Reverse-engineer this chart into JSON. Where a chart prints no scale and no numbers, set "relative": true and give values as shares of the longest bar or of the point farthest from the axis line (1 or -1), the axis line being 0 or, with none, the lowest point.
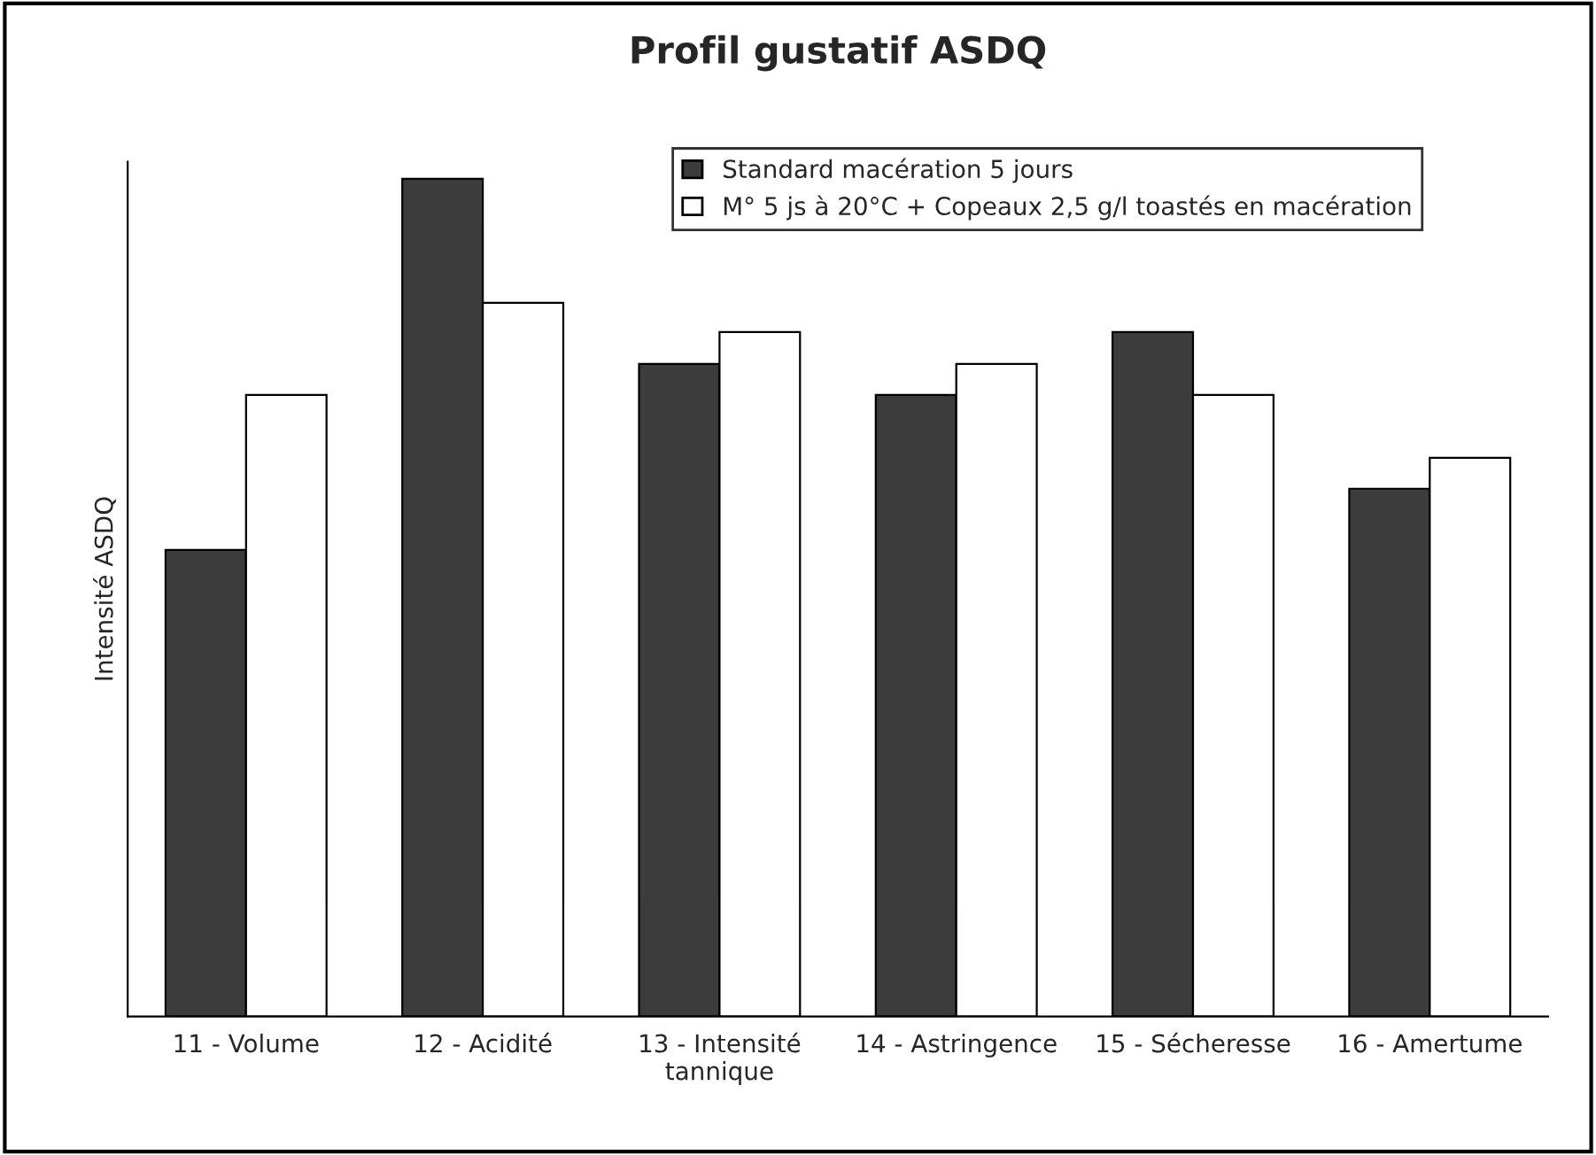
{
  "chart_data": {
    "type": "bar",
    "title": "Profil gustatif ASDQ",
    "ylabel": "Intensité ASDQ",
    "relative": true,
    "categories": [
      "11 - Volume",
      "12 - Acidité",
      "13 - Intensité\ntannique",
      "14 - Astringence",
      "15 - Sécheresse",
      "16 - Amertume"
    ],
    "series": [
      {
        "name": "Standard macération 5 jours",
        "color": "#3c3c3c",
        "values": [
          0.557,
          1,
          0.779,
          0.742,
          0.817,
          0.63
        ]
      },
      {
        "name": "M° 5 js à 20°C + Copeaux 2,5 g/l toastés en macération",
        "color": "#ffffff",
        "values": [
          0.742,
          0.852,
          0.817,
          0.779,
          0.742,
          0.667
        ]
      }
    ],
    "legend": "top right",
    "grid": false
  }
}
